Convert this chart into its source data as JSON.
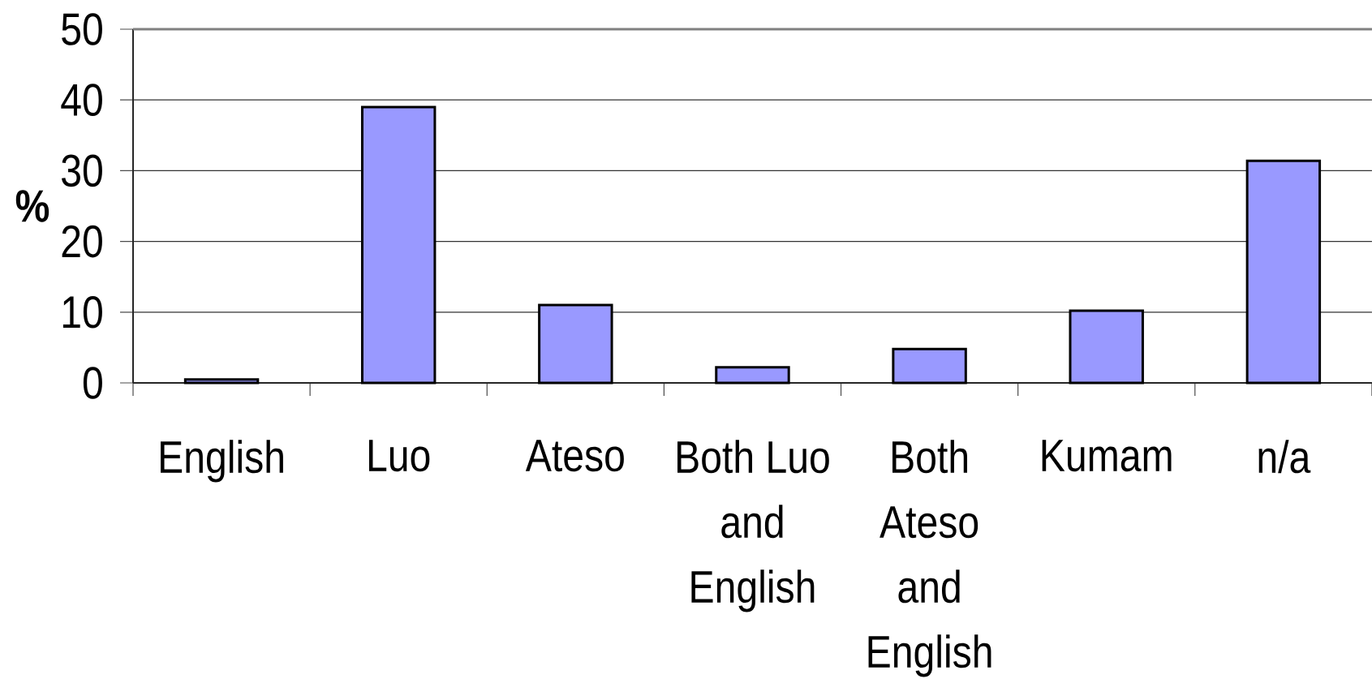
{
  "chart_data": {
    "type": "bar",
    "ylabel": "%",
    "categories": [
      "English",
      "Luo",
      "Ateso",
      "Both Luo and English",
      "Both Ateso and English",
      "Kumam",
      "n/a"
    ],
    "values": [
      0.5,
      39,
      11,
      2.2,
      4.8,
      10.2,
      31.4
    ],
    "color": "#9999ff",
    "ylim": [
      0,
      50
    ],
    "yticks": [
      0,
      10,
      20,
      30,
      40,
      50
    ],
    "grid": "y"
  }
}
